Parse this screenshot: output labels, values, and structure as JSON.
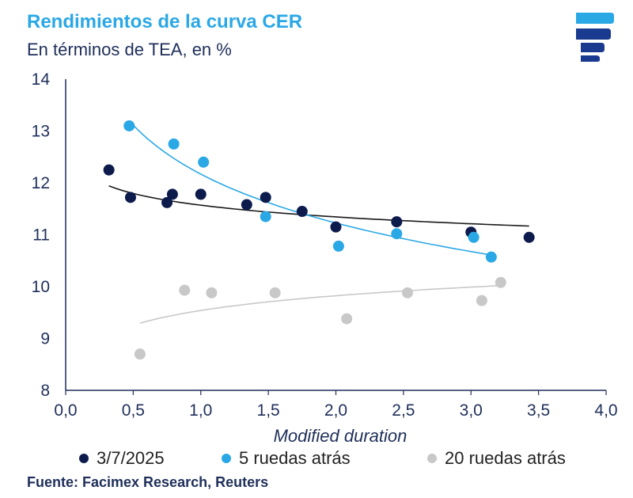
{
  "header": {
    "title": "Rendimientos de la curva CER",
    "subtitle": "En términos de TEA, en %"
  },
  "logo": {
    "icon": "facimex-logo-icon",
    "colors": [
      "#2aa8e6",
      "#1a3a8f"
    ]
  },
  "chart_data": {
    "type": "scatter",
    "title": "",
    "xlabel": "Modified duration",
    "ylabel": "",
    "xlim": [
      0.0,
      4.0
    ],
    "ylim": [
      8,
      14
    ],
    "x_ticks": [
      "0,0",
      "0,5",
      "1,0",
      "1,5",
      "2,0",
      "2,5",
      "3,0",
      "3,5",
      "4,0"
    ],
    "y_ticks": [
      "8",
      "9",
      "10",
      "11",
      "12",
      "13",
      "14"
    ],
    "grid": false,
    "legend_position": "bottom",
    "series": [
      {
        "name": "3/7/2025",
        "color": "#0d1b4c",
        "trend_color": "#1a1a1a",
        "points": [
          [
            0.32,
            12.25
          ],
          [
            0.48,
            11.72
          ],
          [
            0.75,
            11.62
          ],
          [
            0.79,
            11.78
          ],
          [
            1.0,
            11.78
          ],
          [
            1.34,
            11.58
          ],
          [
            1.48,
            11.72
          ],
          [
            1.75,
            11.45
          ],
          [
            2.0,
            11.15
          ],
          [
            2.45,
            11.25
          ],
          [
            3.0,
            11.05
          ],
          [
            3.43,
            10.95
          ]
        ],
        "trend": {
          "kind": "log",
          "a": 11.57,
          "b": -0.326,
          "x_from": 0.32,
          "x_to": 3.43
        }
      },
      {
        "name": "5 ruedas atrás",
        "color": "#2aa8e6",
        "trend_color": "#2aa8e6",
        "points": [
          [
            0.47,
            13.1
          ],
          [
            0.8,
            12.75
          ],
          [
            1.02,
            12.4
          ],
          [
            1.48,
            11.35
          ],
          [
            2.02,
            10.78
          ],
          [
            2.45,
            11.02
          ],
          [
            3.02,
            10.95
          ],
          [
            3.15,
            10.57
          ]
        ],
        "trend": {
          "kind": "log",
          "a": 12.17,
          "b": -1.36,
          "x_from": 0.47,
          "x_to": 3.15
        }
      },
      {
        "name": "20 ruedas atrás",
        "color": "#c8c8c8",
        "trend_color": "#c8c8c8",
        "points": [
          [
            0.55,
            8.7
          ],
          [
            0.88,
            9.93
          ],
          [
            1.08,
            9.88
          ],
          [
            1.55,
            9.88
          ],
          [
            2.08,
            9.38
          ],
          [
            2.53,
            9.88
          ],
          [
            3.08,
            9.73
          ],
          [
            3.22,
            10.08
          ]
        ],
        "trend": {
          "kind": "log",
          "a": 9.54,
          "b": 0.41,
          "x_from": 0.55,
          "x_to": 3.22
        }
      }
    ]
  },
  "footer": {
    "source": "Fuente: Facimex Research, Reuters"
  }
}
